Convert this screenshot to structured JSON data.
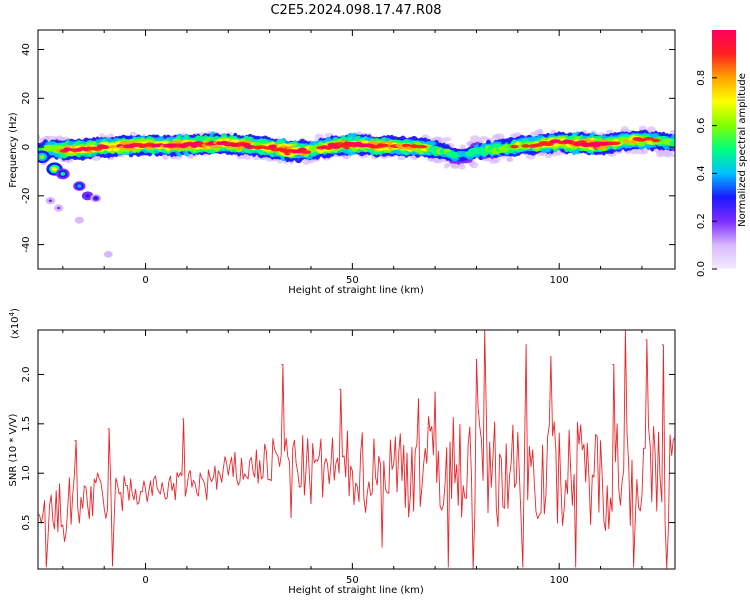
{
  "title": "C2E5.2024.098.17.47.R08",
  "chart_data": [
    {
      "type": "heatmap",
      "name": "spectrogram",
      "xlabel": "Height of straight line (km)",
      "ylabel": "Frequency (Hz)",
      "xlim": [
        -26,
        128
      ],
      "ylim": [
        -50,
        48
      ],
      "xticks": [
        0,
        50,
        100
      ],
      "yticks": [
        -40,
        -20,
        0,
        20,
        40
      ],
      "colorbar": {
        "label": "Normalized spectral amplitude",
        "range": [
          0,
          1
        ],
        "ticks": [
          0.0,
          0.2,
          0.4,
          0.6,
          0.8
        ],
        "colors": [
          "#f4ecff",
          "#d9b8ff",
          "#7b2cff",
          "#1a1aff",
          "#00bfff",
          "#00ff80",
          "#7fff00",
          "#ffff00",
          "#ffa500",
          "#ff2020",
          "#ff0060"
        ]
      },
      "ridge": {
        "x": [
          -26,
          -20,
          -15,
          -10,
          -5,
          0,
          5,
          10,
          15,
          20,
          25,
          30,
          35,
          40,
          45,
          50,
          55,
          60,
          65,
          70,
          72,
          75,
          78,
          80,
          83,
          85,
          90,
          95,
          100,
          105,
          110,
          115,
          120,
          125,
          128
        ],
        "freq": [
          -1,
          -1,
          -1,
          0,
          0.5,
          1,
          0.5,
          1,
          1,
          1.5,
          0.5,
          0,
          -1.5,
          -1.5,
          0.5,
          1,
          0.5,
          0.5,
          0,
          -1,
          -2,
          -3.5,
          -3,
          -1.5,
          -1,
          -1,
          0.5,
          1,
          2,
          1.5,
          1,
          2.5,
          3,
          2.5,
          2
        ],
        "strength": [
          0.5,
          0.8,
          0.9,
          0.75,
          0.9,
          0.85,
          0.85,
          0.9,
          0.85,
          0.9,
          0.85,
          0.8,
          0.95,
          0.7,
          0.85,
          0.9,
          0.85,
          0.8,
          0.8,
          0.65,
          0.6,
          0.5,
          0.45,
          0.55,
          0.6,
          0.65,
          0.7,
          0.75,
          0.85,
          0.9,
          0.9,
          0.7,
          0.75,
          0.65,
          0.6
        ]
      },
      "blobs": [
        {
          "x": -25,
          "freq": -4,
          "strength": 0.55
        },
        {
          "x": -22,
          "freq": -9,
          "strength": 0.6
        },
        {
          "x": -20,
          "freq": -11,
          "strength": 0.4
        },
        {
          "x": -16,
          "freq": -16,
          "strength": 0.3
        },
        {
          "x": -14,
          "freq": -20,
          "strength": 0.25
        },
        {
          "x": -12,
          "freq": -21,
          "strength": 0.2
        },
        {
          "x": -23,
          "freq": -22,
          "strength": 0.12
        },
        {
          "x": -21,
          "freq": -25,
          "strength": 0.1
        },
        {
          "x": -16,
          "freq": -30,
          "strength": 0.08
        },
        {
          "x": -9,
          "freq": -44,
          "strength": 0.06
        }
      ]
    },
    {
      "type": "line",
      "name": "snr",
      "xlabel": "Height of straight line (km)",
      "ylabel": "SNR (10 * V/V)",
      "scale_note": "(x10",
      "scale_exp": "4",
      "scale_close": ")",
      "color": "#e8262a",
      "xlim": [
        -26,
        128
      ],
      "ylim": [
        0.03,
        2.45
      ],
      "xticks": [
        0,
        50,
        100
      ],
      "yticks": [
        0.5,
        1.0,
        1.5,
        2.0
      ],
      "envelope": {
        "x": [
          -26,
          -20,
          -15,
          -10,
          -5,
          0,
          5,
          10,
          15,
          20,
          25,
          30,
          35,
          40,
          45,
          50,
          55,
          60,
          65,
          70,
          75,
          80,
          85,
          90,
          95,
          100,
          105,
          110,
          115,
          120,
          125,
          128
        ],
        "center": [
          0.45,
          0.6,
          0.75,
          0.7,
          0.8,
          0.82,
          0.85,
          0.88,
          0.9,
          1.0,
          1.05,
          1.1,
          1.15,
          1.0,
          1.05,
          1.05,
          1.0,
          1.05,
          1.05,
          1.1,
          1.05,
          1.1,
          1.0,
          1.05,
          1.05,
          1.0,
          1.05,
          0.95,
          1.05,
          1.0,
          0.95,
          1.0
        ],
        "spread": [
          0.35,
          0.35,
          0.3,
          0.3,
          0.2,
          0.15,
          0.15,
          0.15,
          0.2,
          0.2,
          0.2,
          0.25,
          0.3,
          0.35,
          0.35,
          0.4,
          0.45,
          0.5,
          0.5,
          0.55,
          0.55,
          0.6,
          0.55,
          0.55,
          0.55,
          0.55,
          0.5,
          0.55,
          0.6,
          0.55,
          0.55,
          0.55
        ]
      },
      "peaks": [
        {
          "x": -17,
          "y": 1.33
        },
        {
          "x": -9,
          "y": 1.45
        },
        {
          "x": 9,
          "y": 1.55
        },
        {
          "x": 33,
          "y": 2.1
        },
        {
          "x": 47,
          "y": 1.85
        },
        {
          "x": 66,
          "y": 1.75
        },
        {
          "x": 70,
          "y": 1.82
        },
        {
          "x": 80,
          "y": 2.15
        },
        {
          "x": 82,
          "y": 2.45
        },
        {
          "x": 92,
          "y": 2.3
        },
        {
          "x": 98,
          "y": 2.18
        },
        {
          "x": 113,
          "y": 2.1
        },
        {
          "x": 116,
          "y": 2.45
        },
        {
          "x": 121,
          "y": 2.35
        },
        {
          "x": 125,
          "y": 2.3
        }
      ],
      "troughs": [
        {
          "x": -24,
          "y": 0.05
        },
        {
          "x": -8,
          "y": 0.06
        },
        {
          "x": 35,
          "y": 0.55
        },
        {
          "x": 57,
          "y": 0.25
        },
        {
          "x": 73,
          "y": 0.05
        },
        {
          "x": 79,
          "y": 0.03
        },
        {
          "x": 91,
          "y": 0.05
        },
        {
          "x": 104,
          "y": 0.05
        },
        {
          "x": 118,
          "y": 0.05
        },
        {
          "x": 126,
          "y": 0.04
        }
      ]
    }
  ]
}
